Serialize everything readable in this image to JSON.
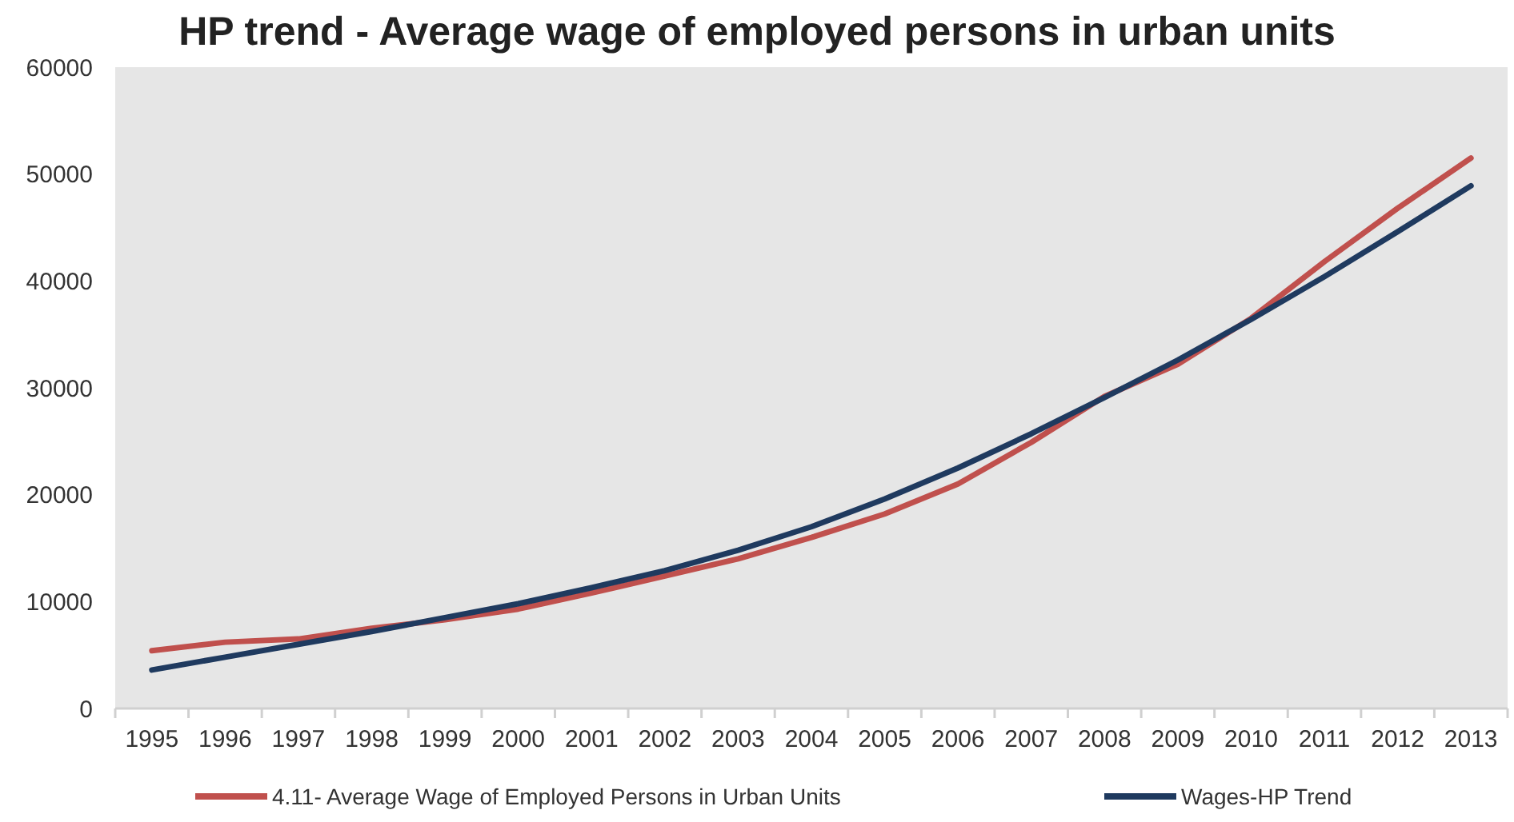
{
  "chart_data": {
    "type": "line",
    "title": "HP trend - Average wage of employed persons in urban units",
    "categories": [
      "1995",
      "1996",
      "1997",
      "1998",
      "1999",
      "2000",
      "2001",
      "2002",
      "2003",
      "2004",
      "2005",
      "2006",
      "2007",
      "2008",
      "2009",
      "2010",
      "2011",
      "2012",
      "2013"
    ],
    "series": [
      {
        "name": "4.11- Average Wage of Employed Persons in Urban Units",
        "color": "#c0504d",
        "values": [
          5400,
          6200,
          6500,
          7500,
          8300,
          9300,
          10800,
          12400,
          14000,
          16000,
          18200,
          21000,
          24900,
          29200,
          32200,
          36500,
          41800,
          46800,
          51500
        ]
      },
      {
        "name": "Wages-HP Trend",
        "color": "#1f3a5f",
        "values": [
          3600,
          4800,
          6000,
          7200,
          8500,
          9800,
          11300,
          12900,
          14800,
          17000,
          19600,
          22500,
          25700,
          29100,
          32600,
          36400,
          40400,
          44600,
          48900
        ]
      }
    ],
    "ylim": [
      0,
      60000
    ],
    "yticks": [
      0,
      10000,
      20000,
      30000,
      40000,
      50000,
      60000
    ],
    "grid": false,
    "legend": "bottom",
    "marker": "none",
    "line_style": "solid"
  }
}
